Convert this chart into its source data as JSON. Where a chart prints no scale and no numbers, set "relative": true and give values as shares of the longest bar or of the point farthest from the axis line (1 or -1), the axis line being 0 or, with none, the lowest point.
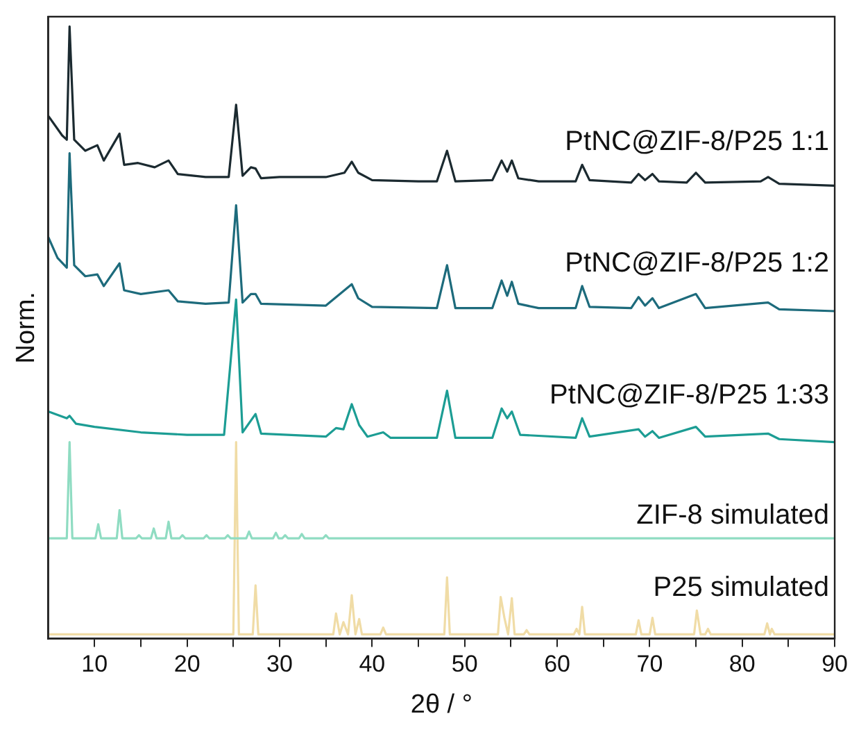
{
  "chart_data": {
    "type": "line",
    "relative": true,
    "xlabel": "2θ / °",
    "ylabel": "Norm.",
    "xlim": [
      5,
      90
    ],
    "xticks": [
      10,
      {
        "value": 15,
        "label": null
      },
      20,
      {
        "value": 25,
        "label": null
      },
      30,
      {
        "value": 35,
        "label": null
      },
      40,
      {
        "value": 45,
        "label": null
      },
      50,
      {
        "value": 55,
        "label": null
      },
      60,
      {
        "value": 65,
        "label": null
      },
      70,
      {
        "value": 75,
        "label": null
      },
      80,
      {
        "value": 85,
        "label": null
      },
      90
    ],
    "legend": false,
    "grid": false,
    "marker": "none",
    "line_style": "solid",
    "series": [
      {
        "name": "PtNC@ZIF-8/P25 1:1",
        "color": "#1b2a30",
        "x": [
          5,
          6.5,
          7,
          7.3,
          7.8,
          9,
          10.3,
          11,
          12.7,
          13.2,
          14.7,
          16.5,
          18,
          19,
          22,
          24.5,
          25.3,
          26,
          26.9,
          27.4,
          28,
          30,
          35,
          37,
          37.8,
          38.5,
          40,
          45,
          47,
          48.1,
          49,
          53,
          54,
          54.6,
          55.1,
          55.8,
          58,
          62,
          62.7,
          63.5,
          68,
          68.8,
          69.5,
          70.3,
          71,
          74,
          75,
          76,
          82,
          82.8,
          84,
          90
        ],
        "values": [
          0.854,
          0.822,
          0.815,
          1.0,
          0.815,
          0.797,
          0.806,
          0.781,
          0.825,
          0.774,
          0.777,
          0.77,
          0.781,
          0.759,
          0.754,
          0.754,
          0.872,
          0.756,
          0.77,
          0.768,
          0.752,
          0.754,
          0.754,
          0.761,
          0.779,
          0.761,
          0.749,
          0.747,
          0.747,
          0.797,
          0.747,
          0.749,
          0.781,
          0.763,
          0.781,
          0.752,
          0.747,
          0.747,
          0.774,
          0.749,
          0.745,
          0.759,
          0.749,
          0.759,
          0.747,
          0.745,
          0.761,
          0.745,
          0.747,
          0.754,
          0.743,
          0.74
        ]
      },
      {
        "name": "PtNC@ZIF-8/P25 1:2",
        "color": "#1d6b7c",
        "x": [
          5,
          6,
          7,
          7.3,
          7.8,
          9,
          10.3,
          11,
          12.7,
          13.2,
          15,
          18,
          19,
          22,
          24.5,
          25.3,
          26,
          26.9,
          27.4,
          28,
          35,
          37.8,
          38.5,
          40,
          47,
          48.1,
          49,
          53,
          54,
          54.6,
          55.1,
          55.8,
          58,
          62,
          62.7,
          63.5,
          68,
          68.8,
          69.5,
          70.3,
          71,
          75,
          76,
          82.8,
          84,
          90
        ],
        "values": [
          0.656,
          0.622,
          0.606,
          0.793,
          0.61,
          0.592,
          0.595,
          0.576,
          0.613,
          0.569,
          0.563,
          0.569,
          0.551,
          0.547,
          0.549,
          0.708,
          0.549,
          0.563,
          0.563,
          0.547,
          0.544,
          0.579,
          0.556,
          0.542,
          0.54,
          0.61,
          0.54,
          0.54,
          0.585,
          0.56,
          0.583,
          0.547,
          0.54,
          0.54,
          0.576,
          0.542,
          0.54,
          0.558,
          0.544,
          0.556,
          0.54,
          0.563,
          0.54,
          0.549,
          0.538,
          0.535
        ]
      },
      {
        "name": "PtNC@ZIF-8/P25 1:33",
        "color": "#1c9d94",
        "x": [
          5,
          7,
          7.3,
          8,
          10,
          15,
          20,
          24,
          25.3,
          26,
          27.4,
          28,
          35,
          36.1,
          36.9,
          37.8,
          38.6,
          39.5,
          41.2,
          42,
          47,
          48.1,
          49,
          53,
          54,
          54.6,
          55.1,
          56,
          62,
          62.7,
          63.5,
          68.8,
          69.5,
          70.3,
          71,
          75,
          76,
          82.8,
          84,
          90
        ],
        "values": [
          0.371,
          0.36,
          0.364,
          0.351,
          0.346,
          0.337,
          0.333,
          0.333,
          0.554,
          0.337,
          0.367,
          0.335,
          0.33,
          0.344,
          0.342,
          0.383,
          0.349,
          0.33,
          0.337,
          0.328,
          0.328,
          0.405,
          0.328,
          0.328,
          0.376,
          0.36,
          0.371,
          0.333,
          0.328,
          0.36,
          0.33,
          0.342,
          0.33,
          0.339,
          0.328,
          0.346,
          0.33,
          0.335,
          0.326,
          0.321
        ]
      },
      {
        "name": "ZIF-8 simulated",
        "color": "#8fdcc2",
        "x": [
          5,
          7,
          7.3,
          7.6,
          10.1,
          10.4,
          10.7,
          12.4,
          12.7,
          13,
          14.5,
          14.8,
          15.1,
          16.1,
          16.4,
          16.7,
          17.7,
          18,
          18.3,
          19.2,
          19.5,
          19.8,
          21.8,
          22.1,
          22.4,
          24.1,
          24.4,
          24.7,
          26.4,
          26.7,
          27,
          29.3,
          29.6,
          29.9,
          30.3,
          30.6,
          30.9,
          32.1,
          32.4,
          32.7,
          34.7,
          35,
          35.3,
          90
        ],
        "values": [
          0.164,
          0.164,
          0.321,
          0.164,
          0.164,
          0.187,
          0.164,
          0.164,
          0.21,
          0.164,
          0.164,
          0.169,
          0.164,
          0.164,
          0.18,
          0.164,
          0.164,
          0.191,
          0.164,
          0.164,
          0.169,
          0.164,
          0.164,
          0.169,
          0.164,
          0.164,
          0.169,
          0.164,
          0.164,
          0.175,
          0.164,
          0.164,
          0.173,
          0.164,
          0.164,
          0.169,
          0.164,
          0.164,
          0.171,
          0.164,
          0.164,
          0.169,
          0.164,
          0.164
        ]
      },
      {
        "name": "P25 simulated",
        "color": "#f0dca6",
        "x": [
          5,
          25,
          25.3,
          25.6,
          27.1,
          27.4,
          27.7,
          35.8,
          36.1,
          36.5,
          36.9,
          37.4,
          37.8,
          38.2,
          38.6,
          38.9,
          40.9,
          41.2,
          41.5,
          47.8,
          48.1,
          48.4,
          53.6,
          53.9,
          54.3,
          54.7,
          55.1,
          55.4,
          56.4,
          56.7,
          57,
          61.8,
          62.1,
          62.4,
          62.7,
          63,
          68.5,
          68.8,
          69.1,
          70,
          70.3,
          70.6,
          74.8,
          75.1,
          75.5,
          76,
          76.3,
          76.6,
          82.4,
          82.7,
          83,
          83.2,
          83.5,
          90
        ],
        "values": [
          0.007,
          0.007,
          0.321,
          0.007,
          0.007,
          0.087,
          0.007,
          0.007,
          0.041,
          0.007,
          0.027,
          0.007,
          0.071,
          0.007,
          0.032,
          0.007,
          0.007,
          0.018,
          0.007,
          0.007,
          0.1,
          0.007,
          0.007,
          0.068,
          0.034,
          0.007,
          0.066,
          0.007,
          0.007,
          0.014,
          0.007,
          0.007,
          0.016,
          0.007,
          0.052,
          0.007,
          0.007,
          0.03,
          0.007,
          0.007,
          0.034,
          0.007,
          0.007,
          0.046,
          0.007,
          0.007,
          0.016,
          0.007,
          0.007,
          0.025,
          0.007,
          0.016,
          0.007,
          0.007
        ]
      }
    ]
  }
}
